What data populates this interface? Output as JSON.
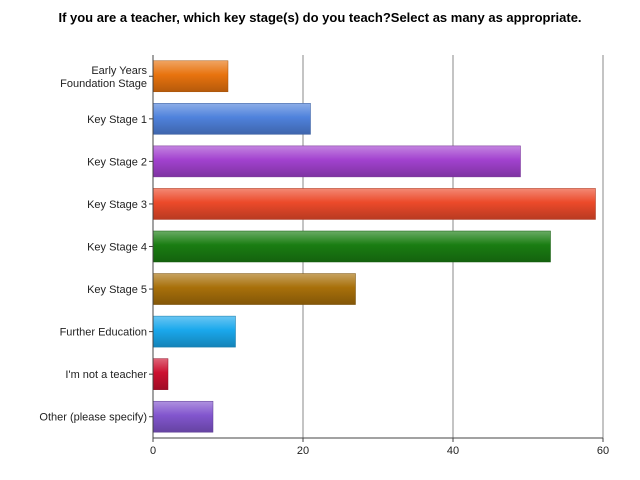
{
  "chart_data": {
    "type": "bar",
    "orientation": "horizontal",
    "title": "If you are a teacher, which key stage(s) do you teach?Select as many as appropriate.",
    "categories": [
      [
        "Early Years",
        "Foundation Stage"
      ],
      [
        "Key Stage 1"
      ],
      [
        "Key Stage 2"
      ],
      [
        "Key Stage 3"
      ],
      [
        "Key Stage 4"
      ],
      [
        "Key Stage 5"
      ],
      [
        "Further Education"
      ],
      [
        "I'm not a teacher"
      ],
      [
        "Other (please specify)"
      ]
    ],
    "values": [
      10,
      21,
      49,
      59,
      53,
      27,
      11,
      2,
      8
    ],
    "colors": [
      "#e8730e",
      "#4f82dc",
      "#a242cf",
      "#ec4a2a",
      "#1a7d12",
      "#a8700a",
      "#1aa8ec",
      "#cc1030",
      "#8256ce"
    ],
    "xlim": [
      0,
      60
    ],
    "xticks": [
      0,
      20,
      40,
      60
    ],
    "grid": true,
    "xlabel": "",
    "ylabel": ""
  }
}
